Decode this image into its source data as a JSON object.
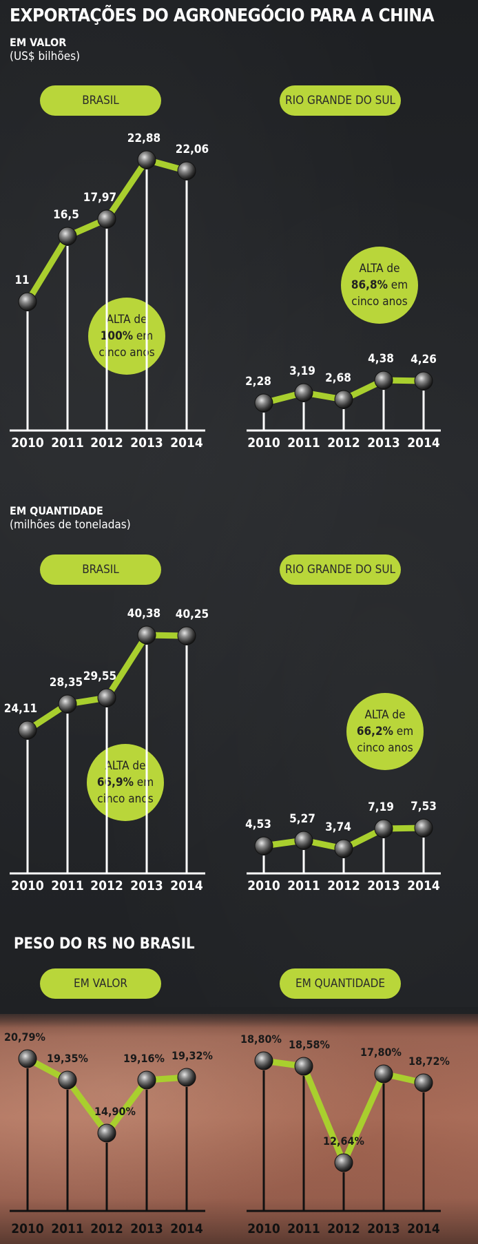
{
  "title": "EXPORTAÇÕES DO AGRONEGÓCIO PARA A CHINA",
  "sections": {
    "valor": {
      "heading": "EM VALOR",
      "unit": "(US$ bilhões)"
    },
    "quantidade": {
      "heading": "EM QUANTIDADE",
      "unit": "(milhões de toneladas)"
    },
    "peso": {
      "heading": "PESO DO RS NO BRASIL"
    }
  },
  "pills": {
    "brasil": "BRASIL",
    "rs": "RIO GRANDE DO SUL",
    "em_valor": "EM VALOR",
    "em_quantidade": "EM QUANTIDADE"
  },
  "badges": {
    "valor_brasil": {
      "line1": "ALTA de",
      "pct": "100%",
      "suffix": " em",
      "line3": "cinco anos"
    },
    "valor_rs": {
      "line1": "ALTA de",
      "pct": "86,8%",
      "suffix": " em",
      "line3": "cinco anos"
    },
    "qtd_brasil": {
      "line1": "ALTA de",
      "pct": "66,9%",
      "suffix": " em",
      "line3": "cinco anos"
    },
    "qtd_rs": {
      "line1": "ALTA de",
      "pct": "66,2%",
      "suffix": " em",
      "line3": "cinco anos"
    }
  },
  "colors": {
    "accent": "#b9d63a",
    "line": "#a9cf2e",
    "text": "#ffffff"
  },
  "chart_data": [
    {
      "type": "line",
      "id": "valor_brasil",
      "categories": [
        "2010",
        "2011",
        "2012",
        "2013",
        "2014"
      ],
      "values": [
        11,
        16.5,
        17.97,
        22.88,
        22.06
      ],
      "labels": [
        "11",
        "16,5",
        "17,97",
        "22,88",
        "22,06"
      ],
      "ylim": [
        0,
        26
      ]
    },
    {
      "type": "line",
      "id": "valor_rs",
      "categories": [
        "2010",
        "2011",
        "2012",
        "2013",
        "2014"
      ],
      "values": [
        2.28,
        3.19,
        2.68,
        4.38,
        4.26
      ],
      "labels": [
        "2,28",
        "3,19",
        "2,68",
        "4,38",
        "4,26"
      ],
      "ylim": [
        0,
        26
      ]
    },
    {
      "type": "line",
      "id": "qtd_brasil",
      "categories": [
        "2010",
        "2011",
        "2012",
        "2013",
        "2014"
      ],
      "values": [
        24.11,
        28.35,
        29.55,
        40.38,
        40.25
      ],
      "labels": [
        "24,11",
        "28,35",
        "29,55",
        "40,38",
        "40,25"
      ],
      "ylim": [
        0,
        46
      ]
    },
    {
      "type": "line",
      "id": "qtd_rs",
      "categories": [
        "2010",
        "2011",
        "2012",
        "2013",
        "2014"
      ],
      "values": [
        4.53,
        5.27,
        3.74,
        7.19,
        7.53
      ],
      "labels": [
        "4,53",
        "5,27",
        "3,74",
        "7,19",
        "7,53"
      ],
      "ylim": [
        0,
        46
      ]
    },
    {
      "type": "line",
      "id": "peso_valor",
      "categories": [
        "2010",
        "2011",
        "2012",
        "2013",
        "2014"
      ],
      "values": [
        20.79,
        19.35,
        14.9,
        19.16,
        19.32
      ],
      "labels": [
        "20,79%",
        "19,35%",
        "14,90%",
        "19,16%",
        "19,32%"
      ]
    },
    {
      "type": "line",
      "id": "peso_qtd",
      "categories": [
        "2010",
        "2011",
        "2012",
        "2013",
        "2014"
      ],
      "values": [
        18.8,
        18.58,
        12.64,
        17.8,
        18.72
      ],
      "labels": [
        "18,80%",
        "18,58%",
        "12,64%",
        "17,80%",
        "18,72%"
      ]
    }
  ]
}
